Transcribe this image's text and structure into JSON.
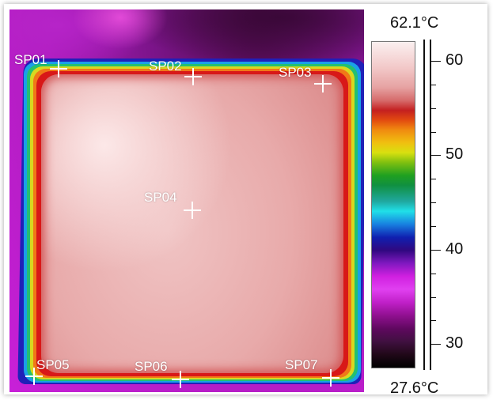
{
  "scale": {
    "max_label": "62.1°C",
    "min_label": "27.6°C",
    "ticks": [
      {
        "value": 60,
        "label": "60"
      },
      {
        "value": 50,
        "label": "50"
      },
      {
        "value": 40,
        "label": "40"
      },
      {
        "value": 30,
        "label": "30"
      }
    ]
  },
  "spots": [
    {
      "id": "SP01",
      "label": "SP01"
    },
    {
      "id": "SP02",
      "label": "SP02"
    },
    {
      "id": "SP03",
      "label": "SP03"
    },
    {
      "id": "SP04",
      "label": "SP04"
    },
    {
      "id": "SP05",
      "label": "SP05"
    },
    {
      "id": "SP06",
      "label": "SP06"
    },
    {
      "id": "SP07",
      "label": "SP07"
    }
  ],
  "colors": {
    "hot": "#f0c4c4",
    "edge": "#d81818",
    "background": "#b01cc0"
  }
}
